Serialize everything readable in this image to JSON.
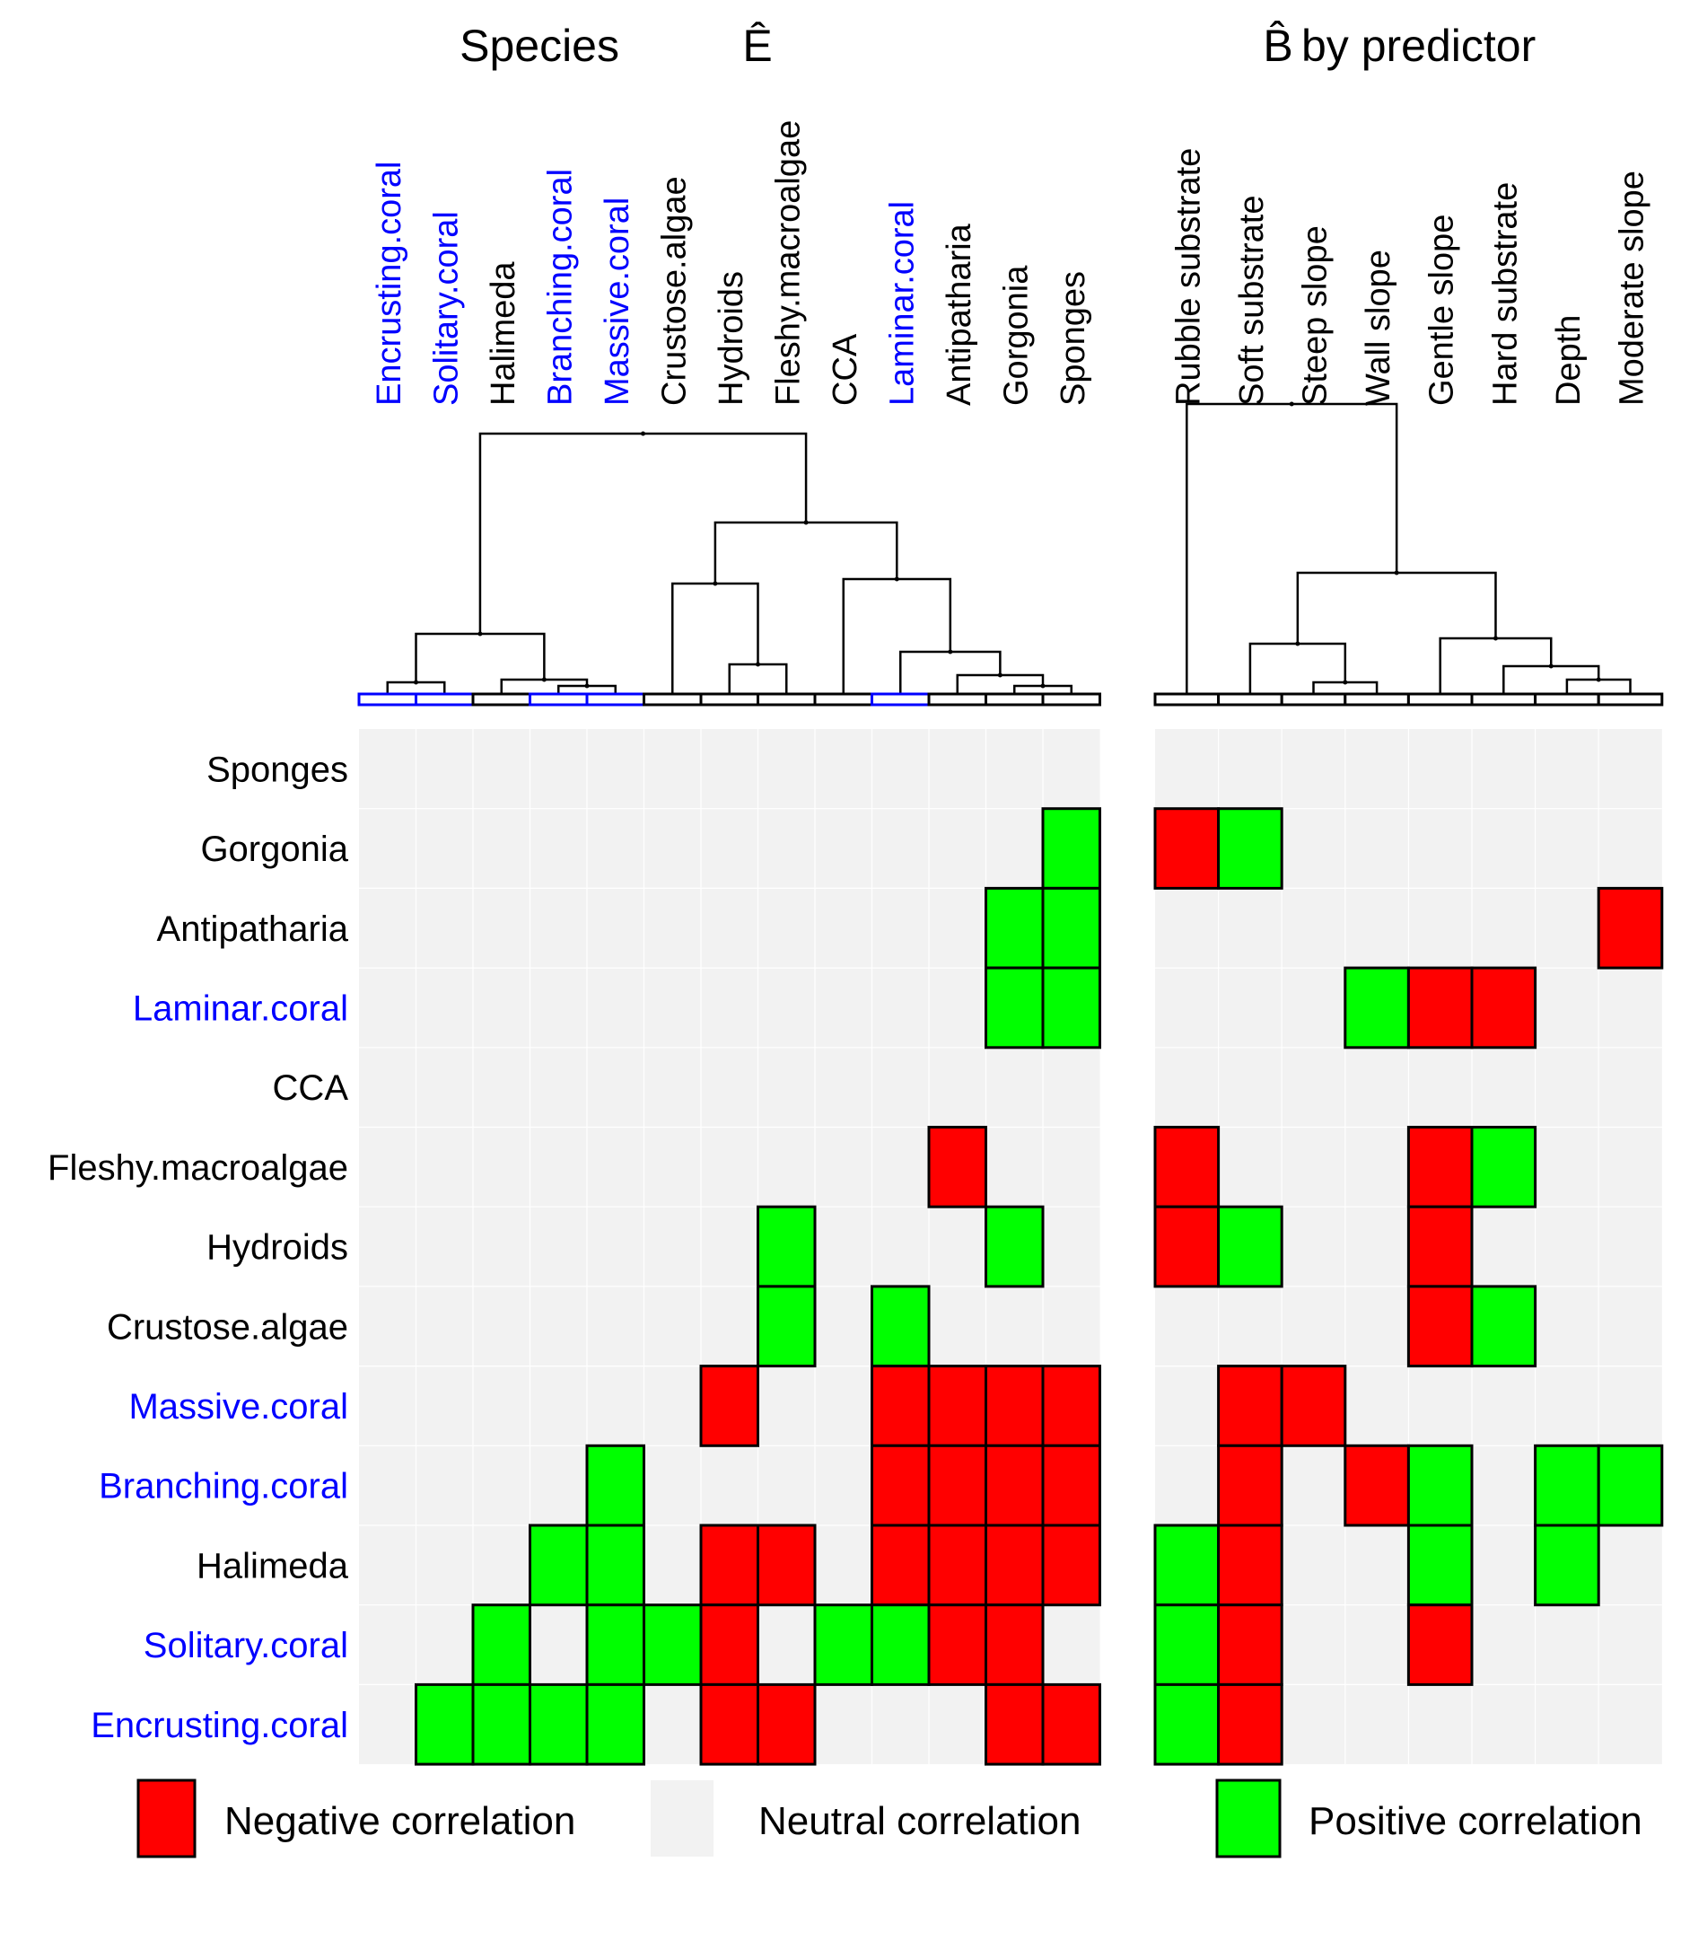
{
  "colors": {
    "negative": "#ff0000",
    "neutral": "#f2f2f2",
    "positive": "#00ff00",
    "coral_label": "#0000ff",
    "other_label": "#000000",
    "tree": "#000000"
  },
  "legend": {
    "negative": "Negative correlation",
    "neutral": "Neutral correlation",
    "positive": "Positive correlation"
  },
  "chart_data": [
    {
      "type": "heatmap",
      "title": "Species",
      "title_symbol": "Ê",
      "columns": [
        "Encrusting.coral",
        "Solitary.coral",
        "Halimeda",
        "Branching.coral",
        "Massive.coral",
        "Crustose.algae",
        "Hydroids",
        "Fleshy.macroalgae",
        "CCA",
        "Laminar.coral",
        "Antipatharia",
        "Gorgonia",
        "Sponges"
      ],
      "rows": [
        "Sponges",
        "Gorgonia",
        "Antipatharia",
        "Laminar.coral",
        "CCA",
        "Fleshy.macroalgae",
        "Hydroids",
        "Crustose.algae",
        "Massive.coral",
        "Branching.coral",
        "Halimeda",
        "Solitary.coral",
        "Encrusting.coral"
      ],
      "coral_labels": [
        "Encrusting.coral",
        "Solitary.coral",
        "Branching.coral",
        "Massive.coral",
        "Laminar.coral"
      ],
      "value_legend": {
        "-1": "Negative correlation",
        "0": "Neutral correlation",
        "1": "Positive correlation"
      },
      "values": [
        [
          0,
          0,
          0,
          0,
          0,
          0,
          0,
          0,
          0,
          0,
          0,
          0,
          0
        ],
        [
          0,
          0,
          0,
          0,
          0,
          0,
          0,
          0,
          0,
          0,
          0,
          0,
          1
        ],
        [
          0,
          0,
          0,
          0,
          0,
          0,
          0,
          0,
          0,
          0,
          0,
          1,
          1
        ],
        [
          0,
          0,
          0,
          0,
          0,
          0,
          0,
          0,
          0,
          0,
          0,
          1,
          1
        ],
        [
          0,
          0,
          0,
          0,
          0,
          0,
          0,
          0,
          0,
          0,
          0,
          0,
          0
        ],
        [
          0,
          0,
          0,
          0,
          0,
          0,
          0,
          0,
          0,
          0,
          -1,
          0,
          0
        ],
        [
          0,
          0,
          0,
          0,
          0,
          0,
          0,
          1,
          0,
          0,
          0,
          1,
          0
        ],
        [
          0,
          0,
          0,
          0,
          0,
          0,
          0,
          1,
          0,
          1,
          0,
          0,
          0
        ],
        [
          0,
          0,
          0,
          0,
          0,
          0,
          -1,
          0,
          0,
          -1,
          -1,
          -1,
          -1
        ],
        [
          0,
          0,
          0,
          0,
          1,
          0,
          0,
          0,
          0,
          -1,
          -1,
          -1,
          -1
        ],
        [
          0,
          0,
          0,
          1,
          1,
          0,
          -1,
          -1,
          0,
          -1,
          -1,
          -1,
          -1
        ],
        [
          0,
          0,
          1,
          0,
          1,
          1,
          -1,
          0,
          1,
          1,
          -1,
          -1,
          0
        ],
        [
          0,
          1,
          1,
          1,
          1,
          0,
          -1,
          -1,
          0,
          0,
          0,
          -1,
          -1
        ]
      ]
    },
    {
      "type": "heatmap",
      "title": "by predictor",
      "title_symbol": "B̂",
      "columns": [
        "Rubble substrate",
        "Soft substrate",
        "Steep slope",
        "Wall slope",
        "Gentle slope",
        "Hard substrate",
        "Depth",
        "Moderate slope"
      ],
      "rows": [
        "Sponges",
        "Gorgonia",
        "Antipatharia",
        "Laminar.coral",
        "CCA",
        "Fleshy.macroalgae",
        "Hydroids",
        "Crustose.algae",
        "Massive.coral",
        "Branching.coral",
        "Halimeda",
        "Solitary.coral",
        "Encrusting.coral"
      ],
      "value_legend": {
        "-1": "Negative correlation",
        "0": "Neutral correlation",
        "1": "Positive correlation"
      },
      "values": [
        [
          0,
          0,
          0,
          0,
          0,
          0,
          0,
          0
        ],
        [
          -1,
          1,
          0,
          0,
          0,
          0,
          0,
          0
        ],
        [
          0,
          0,
          0,
          0,
          0,
          0,
          0,
          -1
        ],
        [
          0,
          0,
          0,
          1,
          -1,
          -1,
          0,
          0
        ],
        [
          0,
          0,
          0,
          0,
          0,
          0,
          0,
          0
        ],
        [
          -1,
          0,
          0,
          0,
          -1,
          1,
          0,
          0
        ],
        [
          -1,
          1,
          0,
          0,
          -1,
          0,
          0,
          0
        ],
        [
          0,
          0,
          0,
          0,
          -1,
          1,
          0,
          0
        ],
        [
          0,
          -1,
          -1,
          0,
          0,
          0,
          0,
          0
        ],
        [
          0,
          -1,
          0,
          -1,
          1,
          0,
          1,
          1
        ],
        [
          1,
          -1,
          0,
          0,
          1,
          0,
          1,
          0
        ],
        [
          1,
          -1,
          0,
          0,
          -1,
          0,
          0,
          0
        ],
        [
          1,
          -1,
          0,
          0,
          0,
          0,
          0,
          0
        ]
      ]
    }
  ]
}
